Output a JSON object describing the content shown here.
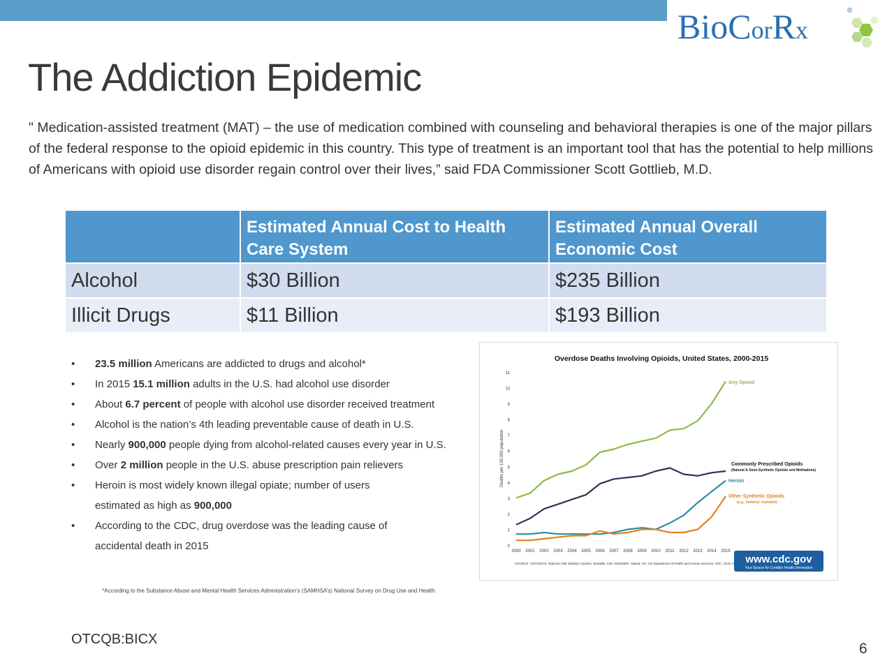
{
  "colors": {
    "accent": "#5b9ec9",
    "table_header": "#4f97cd",
    "row_alt1": "#d1ddef",
    "row_alt2": "#e8edf7",
    "logo_blue": "#2c6fb0",
    "logo_green": "#8ec63f"
  },
  "logo": {
    "text_b": "B",
    "text_io": "io",
    "text_c": "C",
    "text_or": "or",
    "text_r": "R",
    "text_x": "x",
    "reg": "®"
  },
  "title": "The Addiction Epidemic",
  "quote": "\" Medication-assisted treatment (MAT) – the use of medication combined with counseling and behavioral therapies is one of the major pillars of the federal response to the opioid epidemic in this country. This type of treatment is an important tool that has the potential to help millions of Americans with opioid use disorder regain control over their lives,” said FDA Commissioner Scott Gottlieb, M.D.",
  "table": {
    "headers": [
      "",
      "Estimated Annual Cost to Health Care System",
      "Estimated Annual Overall Economic Cost"
    ],
    "rows": [
      [
        "Alcohol",
        "$30 Billion",
        "$235 Billion"
      ],
      [
        "Illicit Drugs",
        "$11 Billion",
        "$193 Billion"
      ]
    ]
  },
  "bullets": [
    {
      "pre": "",
      "bold": "23.5 million",
      "post": " Americans are addicted to drugs and alcohol*"
    },
    {
      "pre": "In 2015 ",
      "bold": "15.1 million",
      "post": " adults in the U.S. had alcohol use disorder"
    },
    {
      "pre": "About ",
      "bold": "6.7 percent",
      "post": " of people with alcohol use disorder received treatment"
    },
    {
      "pre": "Alcohol is the nation’s 4th leading preventable cause of death in  U.S.",
      "bold": "",
      "post": ""
    },
    {
      "pre": "Nearly ",
      "bold": "900,000",
      "post": " people dying from alcohol-related causes every year in U.S."
    },
    {
      "pre": "Over ",
      "bold": "2 million",
      "post": " people in the U.S. abuse prescription pain relievers"
    },
    {
      "pre": "Heroin is most widely known illegal opiate; number of users",
      "bold": "",
      "post": ""
    },
    {
      "pre": "estimated as high as ",
      "bold": "900,000",
      "post": "",
      "cont": true
    },
    {
      "pre": "According to the CDC, drug overdose was the leading cause of",
      "bold": "",
      "post": ""
    },
    {
      "pre": "accidental death in 2015",
      "bold": "",
      "post": "",
      "cont": true
    }
  ],
  "chart_data": {
    "type": "line",
    "title": "Overdose Deaths Involving Opioids, United States, 2000-2015",
    "ylabel": "Deaths per 100,000 population",
    "xlabel": "",
    "x": [
      "2000",
      "2001",
      "2002",
      "2003",
      "2004",
      "2005",
      "2006",
      "2007",
      "2008",
      "2009",
      "2010",
      "2011",
      "2012",
      "2013",
      "2014",
      "2015"
    ],
    "ylim": [
      0,
      11
    ],
    "yticks": [
      "0",
      "1",
      "2",
      "3",
      "4",
      "5",
      "6",
      "7",
      "8",
      "9",
      "10",
      "11"
    ],
    "grid": false,
    "series": [
      {
        "name": "Any Opioid",
        "color": "#8dba4a",
        "values": [
          3.0,
          3.3,
          4.1,
          4.5,
          4.7,
          5.1,
          5.9,
          6.1,
          6.4,
          6.6,
          6.8,
          7.3,
          7.4,
          7.9,
          9.0,
          10.4
        ]
      },
      {
        "name": "Commonly Prescribed Opioids",
        "sublabel": "(Natural & Semi-Synthetic Opioids and Methadone)",
        "color": "#3d2b56",
        "values": [
          1.3,
          1.7,
          2.3,
          2.6,
          2.9,
          3.2,
          3.9,
          4.2,
          4.3,
          4.4,
          4.7,
          4.9,
          4.5,
          4.4,
          4.6,
          4.7
        ]
      },
      {
        "name": "Heroin",
        "color": "#2f8c9d",
        "values": [
          0.7,
          0.7,
          0.8,
          0.7,
          0.7,
          0.7,
          0.7,
          0.8,
          1.0,
          1.1,
          1.0,
          1.4,
          1.9,
          2.7,
          3.4,
          4.1
        ]
      },
      {
        "name": "Other Synthetic Opioids",
        "sublabel": "(e.g., fentanyl, tramadol)",
        "color": "#e2831f",
        "values": [
          0.3,
          0.3,
          0.4,
          0.5,
          0.6,
          0.6,
          0.9,
          0.7,
          0.8,
          1.0,
          1.0,
          0.8,
          0.8,
          1.0,
          1.8,
          3.1
        ]
      }
    ],
    "source": "SOURCE: CDC/NCHS, National Vital Statistics System, Mortality. CDC WONDER, Atlanta, GA: US Department of Health and Human Services, CDC; 2016. https://wonder.cdc.gov/.",
    "badge": {
      "url": "www.cdc.gov",
      "tagline": "Your Source for Credible Health Information"
    }
  },
  "footnote": "*According to the Substance Abuse and Mental Health Services Administration’s (SAMHSA’s) National Survey on Drug Use and Health.",
  "ticker": "OTCQB:BICX",
  "page_number": "6"
}
